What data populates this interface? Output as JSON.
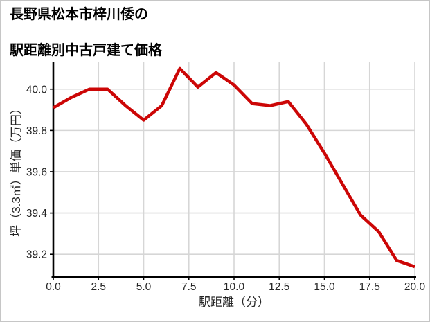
{
  "window": {
    "background": "#ffffff",
    "border_color": "#c6c6c6"
  },
  "title": {
    "line1": "長野県松本市梓川倭の",
    "line2": "駅距離別中古戸建て価格"
  },
  "chart_data": {
    "type": "line",
    "title": "長野県松本市梓川倭の駅距離別中古戸建て価格",
    "xlabel": "駅距離（分）",
    "ylabel": "坪（3.3㎡）単価（万円）",
    "x": [
      0,
      1,
      2,
      3,
      4,
      5,
      6,
      7,
      8,
      9,
      10,
      11,
      12,
      13,
      14,
      15,
      16,
      17,
      18,
      19,
      20
    ],
    "y": [
      39.91,
      39.96,
      40.0,
      40.0,
      39.92,
      39.85,
      39.92,
      40.1,
      40.01,
      40.08,
      40.02,
      39.93,
      39.92,
      39.94,
      39.83,
      39.69,
      39.54,
      39.39,
      39.31,
      39.17,
      39.14
    ],
    "xlim": [
      0,
      20
    ],
    "ylim": [
      39.09,
      40.13
    ],
    "xticks": [
      0,
      2.5,
      5,
      7.5,
      10,
      12.5,
      15,
      17.5,
      20
    ],
    "xtick_labels": [
      "0.0",
      "2.5",
      "5.0",
      "7.5",
      "10.0",
      "12.5",
      "15.0",
      "17.5",
      "20.0"
    ],
    "yticks": [
      39.2,
      39.4,
      39.6,
      39.8,
      40.0
    ],
    "ytick_labels": [
      "39.2",
      "39.4",
      "39.6",
      "39.8",
      "40.0"
    ],
    "grid": true,
    "legend": "none",
    "line_color": "#cc0606",
    "line_width": 4.5,
    "grid_color": "#d6d6d6",
    "spine_color": "#000000",
    "tick_label_color": "#262626",
    "tick_label_size": 15.5,
    "axis_label_size": 17
  }
}
